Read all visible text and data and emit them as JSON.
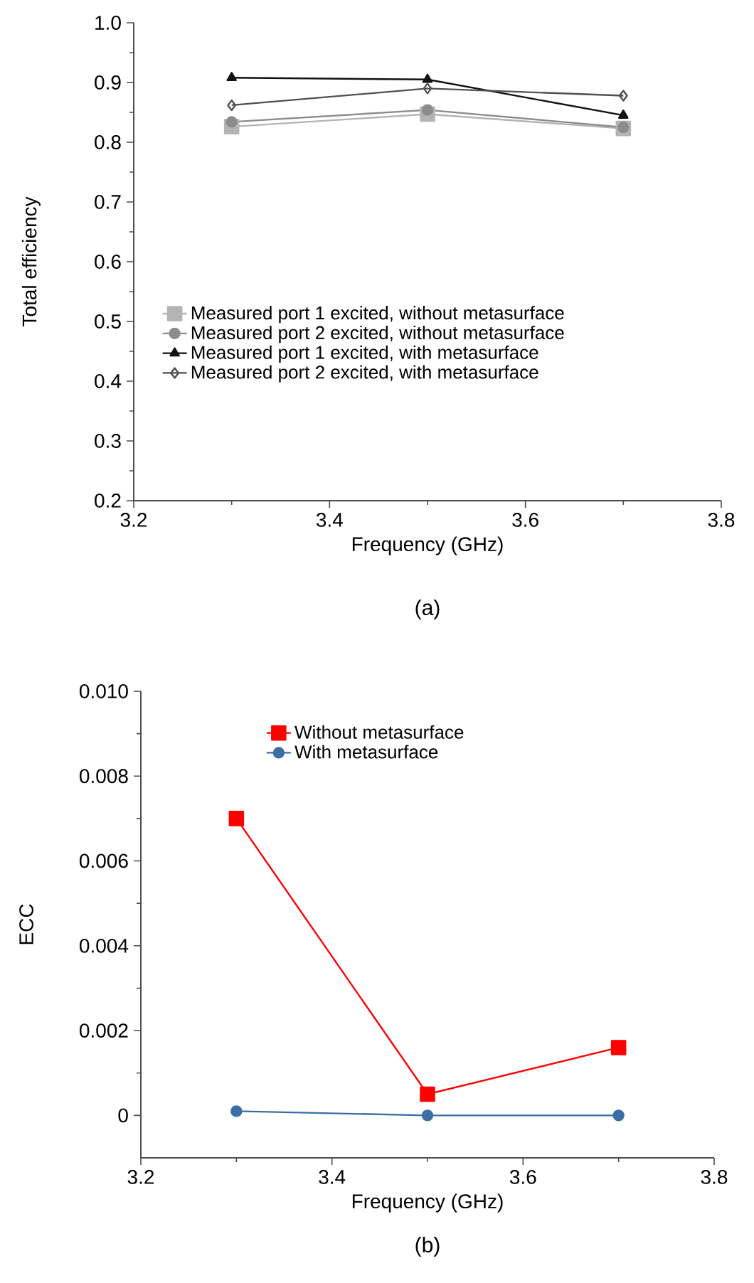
{
  "chart_data": [
    {
      "type": "line",
      "xlabel": "Frequency (GHz)",
      "ylabel": "Total efficiency",
      "annotations": [
        "(a)"
      ],
      "x": [
        3.3,
        3.5,
        3.7
      ],
      "xlim": [
        3.2,
        3.8
      ],
      "ylim": [
        0.2,
        1.0
      ],
      "xticks": [
        3.2,
        {
          "value": 3.3,
          "label": null
        },
        3.4,
        {
          "value": 3.5,
          "label": null
        },
        3.6,
        {
          "value": 3.7,
          "label": null
        },
        3.8
      ],
      "yticks": [
        0.2,
        {
          "value": 0.25,
          "label": null
        },
        0.3,
        {
          "value": 0.35,
          "label": null
        },
        0.4,
        {
          "value": 0.45,
          "label": null
        },
        0.5,
        {
          "value": 0.55,
          "label": null
        },
        0.6,
        {
          "value": 0.65,
          "label": null
        },
        0.7,
        {
          "value": 0.75,
          "label": null
        },
        0.8,
        {
          "value": 0.85,
          "label": null
        },
        0.9,
        {
          "value": 0.95,
          "label": null
        },
        {
          "value": 1.0,
          "label": "1.0"
        }
      ],
      "legend": "left",
      "grid": false,
      "series": [
        {
          "name": "Measured port 1 excited, without metasurface",
          "color": "#b4b4b4",
          "marker": "square",
          "values": [
            0.826,
            0.847,
            0.823
          ]
        },
        {
          "name": "Measured port 2 excited, without metasurface",
          "color": "#8c8c8c",
          "marker": "circle",
          "values": [
            0.834,
            0.854,
            0.825
          ]
        },
        {
          "name": "Measured port 1 excited, with metasurface",
          "color": "#111111",
          "marker": "triangle",
          "values": [
            0.908,
            0.905,
            0.845
          ]
        },
        {
          "name": "Measured port 2 excited, with metasurface",
          "color": "#505050",
          "marker": "diamond",
          "values": [
            0.862,
            0.89,
            0.878
          ]
        }
      ]
    },
    {
      "type": "line",
      "xlabel": "Frequency (GHz)",
      "ylabel": "ECC",
      "annotations": [
        "(b)"
      ],
      "x": [
        3.3,
        3.5,
        3.7
      ],
      "xlim": [
        3.2,
        3.8
      ],
      "ylim": [
        -0.001,
        0.01
      ],
      "xticks": [
        3.2,
        {
          "value": 3.3,
          "label": null
        },
        3.4,
        {
          "value": 3.5,
          "label": null
        },
        3.6,
        {
          "value": 3.7,
          "label": null
        },
        3.8
      ],
      "yticks": [
        0,
        {
          "value": 0.001,
          "label": null
        },
        0.002,
        {
          "value": 0.003,
          "label": null
        },
        0.004,
        {
          "value": 0.005,
          "label": null
        },
        0.006,
        {
          "value": 0.007,
          "label": null
        },
        0.008,
        {
          "value": 0.009,
          "label": null
        },
        {
          "value": 0.01,
          "label": "0.010"
        }
      ],
      "legend": "top",
      "grid": false,
      "series": [
        {
          "name": "Without metasurface",
          "color": "#ff0000",
          "marker": "square",
          "values": [
            0.007,
            0.0005,
            0.0016
          ]
        },
        {
          "name": "With metasurface",
          "color": "#3a6ea5",
          "marker": "circle",
          "values": [
            0.0001,
            0.0,
            0.0
          ]
        }
      ]
    }
  ]
}
